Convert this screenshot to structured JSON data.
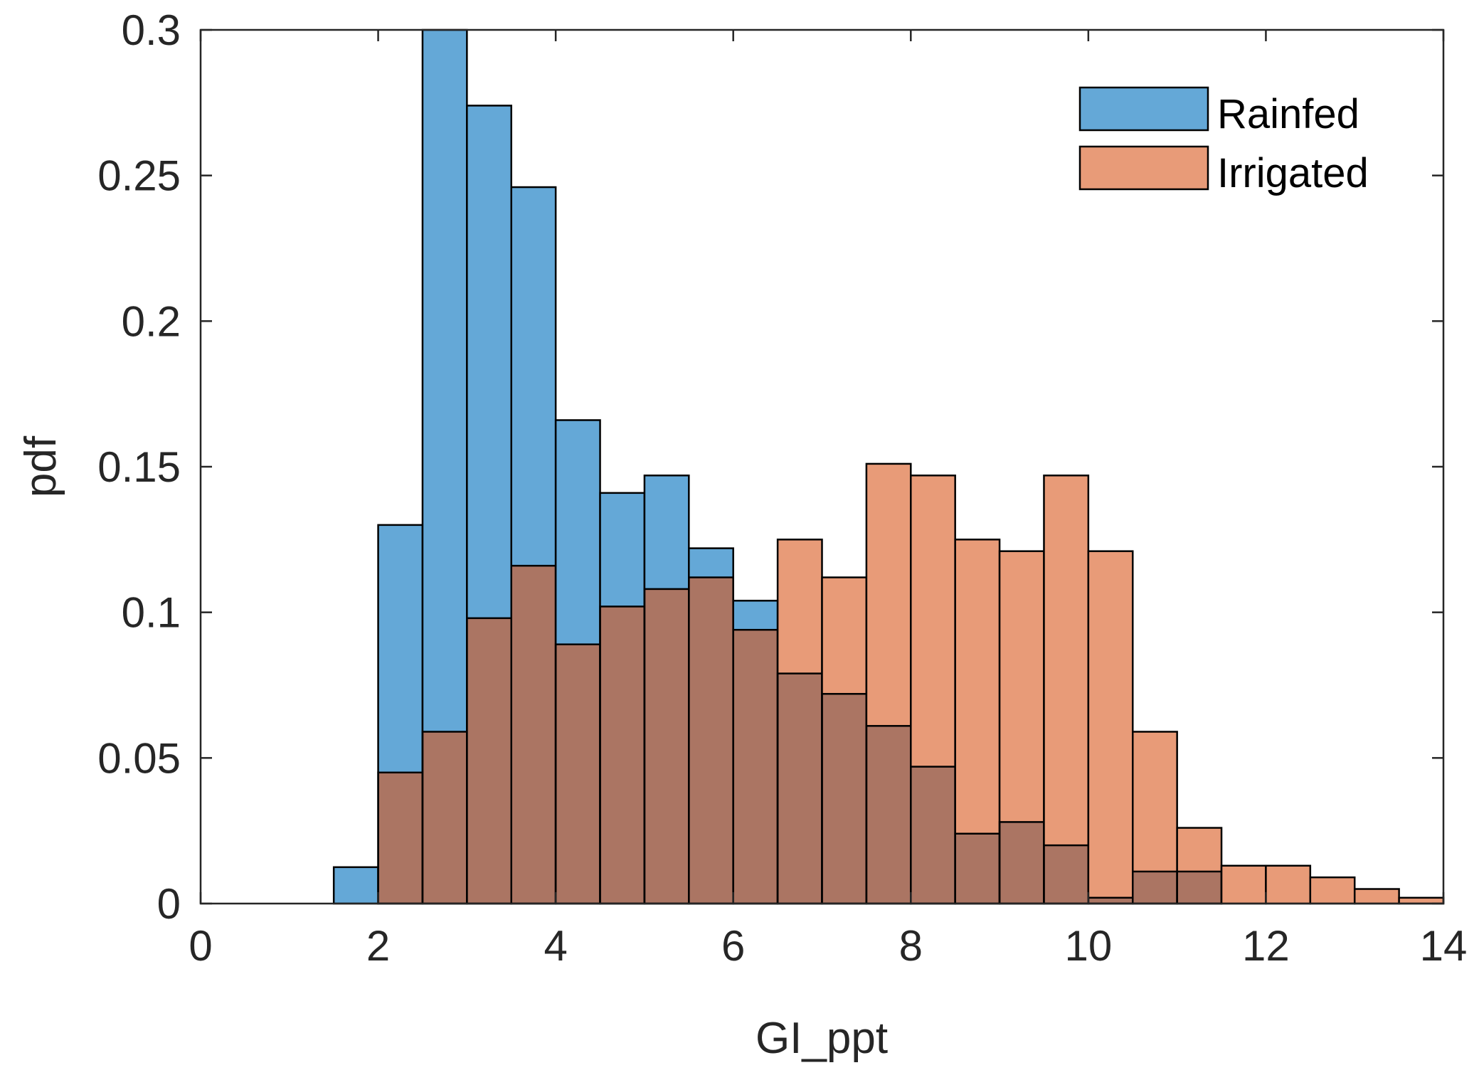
{
  "chart_data": {
    "type": "bar",
    "title": "",
    "xlabel": "GI_ppt",
    "ylabel": "pdf",
    "xlim": [
      0,
      14
    ],
    "ylim": [
      0,
      0.3
    ],
    "xticks": [
      0,
      2,
      4,
      6,
      8,
      10,
      12,
      14
    ],
    "yticks": [
      0,
      0.05,
      0.1,
      0.15,
      0.2,
      0.25,
      0.3
    ],
    "xtick_labels": [
      "0",
      "2",
      "4",
      "6",
      "8",
      "10",
      "12",
      "14"
    ],
    "ytick_labels": [
      "0",
      "0.05",
      "0.1",
      "0.15",
      "0.2",
      "0.25",
      "0.3"
    ],
    "bin_width": 0.5,
    "bin_edges": [
      1.5,
      2,
      2.5,
      3,
      3.5,
      4,
      4.5,
      5,
      5.5,
      6,
      6.5,
      7,
      7.5,
      8,
      8.5,
      9,
      9.5,
      10,
      10.5,
      11,
      11.5,
      12,
      12.5,
      13,
      13.5,
      14
    ],
    "legend_position": "top-right",
    "overlap_color": "#ab7563",
    "series": [
      {
        "name": "Rainfed",
        "color": "#64a8d7",
        "values": [
          0.0125,
          0.13,
          0.3,
          0.274,
          0.246,
          0.166,
          0.141,
          0.147,
          0.122,
          0.104,
          0.079,
          0.072,
          0.061,
          0.047,
          0.024,
          0.028,
          0.02,
          0.002,
          0.011,
          0.011,
          0,
          0,
          0,
          0,
          0
        ]
      },
      {
        "name": "Irrigated",
        "color": "#e89b78",
        "values": [
          0,
          0.045,
          0.059,
          0.098,
          0.116,
          0.089,
          0.102,
          0.108,
          0.112,
          0.094,
          0.125,
          0.112,
          0.151,
          0.147,
          0.125,
          0.121,
          0.147,
          0.121,
          0.059,
          0.026,
          0.013,
          0.013,
          0.009,
          0.005,
          0.002
        ]
      }
    ]
  }
}
